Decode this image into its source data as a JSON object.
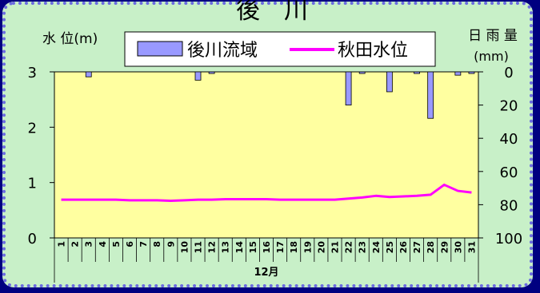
{
  "chart_data": {
    "type": "bar+line",
    "title": "後　川",
    "left_axis": {
      "label": "水 位(m)",
      "ticks": [
        "0",
        "1",
        "2",
        "3"
      ],
      "ylim": [
        0,
        3
      ]
    },
    "right_axis": {
      "label_line1": "日 雨 量",
      "label_line2": "(mm)",
      "ticks": [
        "0",
        "20",
        "40",
        "60",
        "80",
        "100"
      ],
      "ylim": [
        0,
        100
      ],
      "inverted": true
    },
    "xlabel": "12月",
    "categories": [
      "1",
      "2",
      "3",
      "4",
      "5",
      "6",
      "7",
      "8",
      "9",
      "10",
      "11",
      "12",
      "13",
      "14",
      "15",
      "16",
      "17",
      "18",
      "19",
      "20",
      "21",
      "22",
      "23",
      "24",
      "25",
      "26",
      "27",
      "28",
      "29",
      "30",
      "31"
    ],
    "series": [
      {
        "name": "後川流域",
        "kind": "bar",
        "axis": "right",
        "color": "#9999ff",
        "values": [
          0,
          0,
          3,
          0,
          0,
          0,
          0,
          0,
          0,
          0,
          5,
          1,
          0,
          0,
          0,
          0,
          0,
          0,
          0,
          0,
          0,
          20,
          1,
          0,
          12,
          0,
          1,
          28,
          0,
          2,
          1
        ]
      },
      {
        "name": "秋田水位",
        "kind": "line",
        "axis": "left",
        "color": "#ff00ff",
        "values": [
          0.69,
          0.69,
          0.69,
          0.69,
          0.69,
          0.68,
          0.68,
          0.68,
          0.67,
          0.68,
          0.69,
          0.69,
          0.7,
          0.7,
          0.7,
          0.7,
          0.69,
          0.69,
          0.69,
          0.69,
          0.69,
          0.71,
          0.73,
          0.76,
          0.74,
          0.75,
          0.76,
          0.78,
          0.96,
          0.85,
          0.82
        ]
      }
    ],
    "legend_position": "top-center"
  },
  "colors": {
    "plot_bg": "#ffffa0",
    "frame_bg": "#c8f0c8",
    "outer_bg": "#000080",
    "border": "#6a6ae0"
  }
}
